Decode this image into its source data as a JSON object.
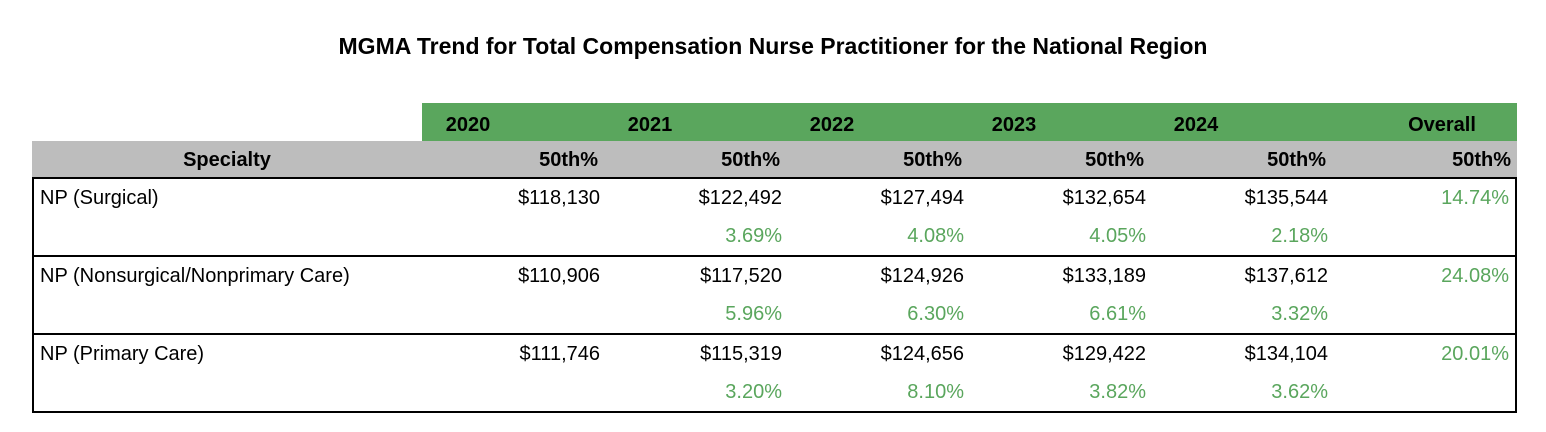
{
  "title": "MGMA Trend for Total Compensation Nurse Practitioner for the National Region",
  "colors": {
    "accent_green": "#5aa65d",
    "header_gray": "#bdbdbd"
  },
  "years": [
    "2020",
    "2021",
    "2022",
    "2023",
    "2024",
    "Overall"
  ],
  "header": {
    "specialty": "Specialty",
    "metrics": [
      "50th%",
      "50th%",
      "50th%",
      "50th%",
      "50th%",
      "50th%"
    ]
  },
  "rows": [
    {
      "specialty": "NP (Surgical)",
      "values": [
        "$118,130",
        "$122,492",
        "$127,494",
        "$132,654",
        "$135,544"
      ],
      "overall": "14.74%",
      "growth": [
        "",
        "3.69%",
        "4.08%",
        "4.05%",
        "2.18%"
      ]
    },
    {
      "specialty": "NP (Nonsurgical/Nonprimary Care)",
      "values": [
        "$110,906",
        "$117,520",
        "$124,926",
        "$133,189",
        "$137,612"
      ],
      "overall": "24.08%",
      "growth": [
        "",
        "5.96%",
        "6.30%",
        "6.61%",
        "3.32%"
      ]
    },
    {
      "specialty": "NP (Primary Care)",
      "values": [
        "$111,746",
        "$115,319",
        "$124,656",
        "$129,422",
        "$134,104"
      ],
      "overall": "20.01%",
      "growth": [
        "",
        "3.20%",
        "8.10%",
        "3.82%",
        "3.62%"
      ]
    }
  ]
}
